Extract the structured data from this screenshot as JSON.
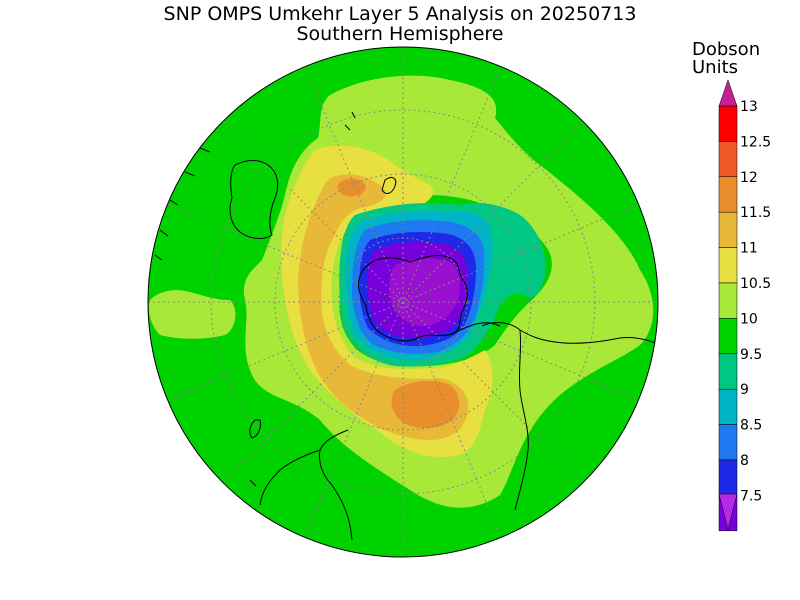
{
  "title": "SNP OMPS Umkehr Layer 5 Analysis on 20250713",
  "subtitle": "Southern Hemisphere",
  "units_line1": "Dobson",
  "units_line2": "Units",
  "colorbar": {
    "levels": [
      "13",
      "12.5",
      "12",
      "11.5",
      "11",
      "10.5",
      "10",
      "9.5",
      "9",
      "8.5",
      "8",
      "7.5"
    ],
    "colors": [
      "#ff0000",
      "#ee5a2a",
      "#e88e2c",
      "#e8b838",
      "#e8e040",
      "#a8e838",
      "#00d200",
      "#00c882",
      "#00b4c8",
      "#1e78f0",
      "#1e28e6",
      "#7800dc"
    ],
    "upper_triangle_color": "#c81e96",
    "lower_triangle_color": "#b42ae6"
  },
  "map_colors": {
    "ocean_base": "#00d200",
    "level_10_5": "#a8e838",
    "level_11": "#e8e040",
    "level_11_5": "#e8b838",
    "level_12": "#e88e2c",
    "level_9_5": "#00c882",
    "level_9": "#00b4c8",
    "level_8_5": "#1e78f0",
    "level_8": "#1e28e6",
    "level_7_5": "#7800dc",
    "core": "#9a10d0",
    "coast": "#000000",
    "grid": "#888888"
  }
}
